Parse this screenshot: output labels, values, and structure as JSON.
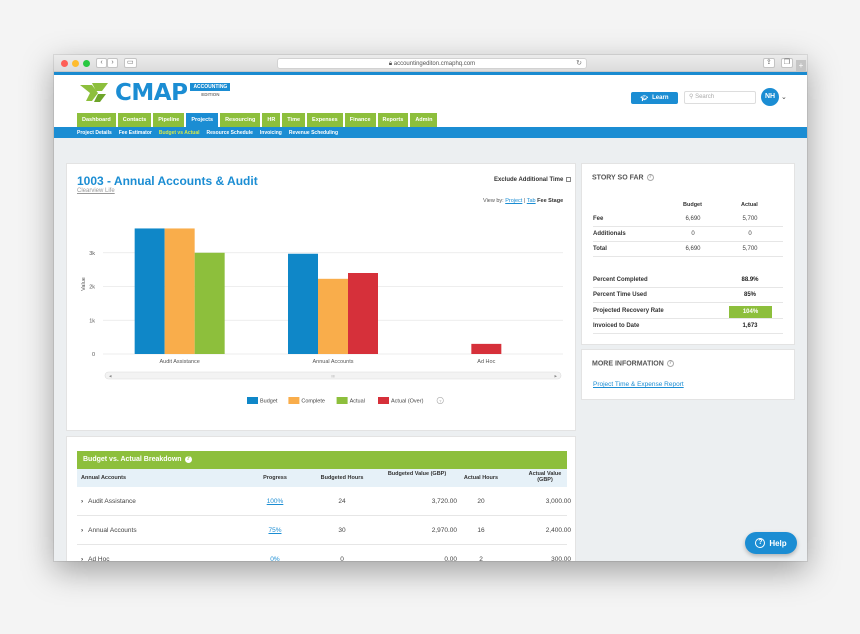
{
  "browser": {
    "url": "accountingediton.cmaphq.com",
    "traffic_lights": [
      "#fe5f57",
      "#febc2e",
      "#28c840"
    ],
    "back_label": "‹",
    "forward_label": "›",
    "reload_icon": "↻",
    "share_icon": "⇪",
    "tabs_icon": "❐",
    "new_tab_label": "+"
  },
  "header": {
    "logo_text": "CMAP",
    "edition_top": "ACCOUNTING",
    "edition_bottom": "EDITION",
    "learn_label": "Learn",
    "search_placeholder": "Search",
    "avatar_initials": "NH",
    "avatar_caret": "⌄"
  },
  "nav": {
    "tabs": [
      {
        "label": "Dashboard",
        "active": false
      },
      {
        "label": "Contacts",
        "active": false
      },
      {
        "label": "Pipeline",
        "active": false
      },
      {
        "label": "Projects",
        "active": true
      },
      {
        "label": "Resourcing",
        "active": false
      },
      {
        "label": "HR",
        "active": false
      },
      {
        "label": "Time",
        "active": false
      },
      {
        "label": "Expenses",
        "active": false
      },
      {
        "label": "Finance",
        "active": false
      },
      {
        "label": "Reports",
        "active": false
      },
      {
        "label": "Admin",
        "active": false
      }
    ],
    "subnav": [
      {
        "label": "Project Details",
        "active": false
      },
      {
        "label": "Fee Estimator",
        "active": false
      },
      {
        "label": "Budget vs Actual",
        "active": true
      },
      {
        "label": "Resource Schedule",
        "active": false
      },
      {
        "label": "Invoicing",
        "active": false
      },
      {
        "label": "Revenue Scheduling",
        "active": false
      }
    ]
  },
  "project": {
    "title": "1003 - Annual Accounts & Audit",
    "client": "Clearview Life",
    "exclude_label": "Exclude Additional Time",
    "viewby_label": "View by:",
    "viewby_project": "Project",
    "viewby_sep": "|",
    "viewby_tab": "Tab",
    "viewby_fee_stage": "Fee Stage"
  },
  "chart_data": {
    "type": "bar",
    "categories": [
      "Audit Assistance",
      "Annual Accounts",
      "Ad Hoc"
    ],
    "ylabel": "Value",
    "yticks": [
      "0",
      "1k",
      "2k",
      "3k"
    ],
    "ylim": [
      0,
      4000
    ],
    "series": [
      {
        "name": "Budget",
        "color": "#0f87c8",
        "values": [
          3720,
          2970,
          0
        ]
      },
      {
        "name": "Complete",
        "color": "#f9ad4b",
        "values": [
          3720,
          2228,
          0
        ]
      },
      {
        "name": "Actual",
        "color": "#8dbf3c",
        "values": [
          3000,
          0,
          0
        ]
      },
      {
        "name": "Actual (Over)",
        "color": "#d6303a",
        "values": [
          0,
          2400,
          300
        ]
      }
    ],
    "legend_position": "bottom",
    "scrollbar_center_label": "III"
  },
  "story": {
    "heading": "STORY SO FAR",
    "col_budget": "Budget",
    "col_actual": "Actual",
    "rows": [
      {
        "label": "Fee",
        "budget": "6,690",
        "actual": "5,700"
      },
      {
        "label": "Additionals",
        "budget": "0",
        "actual": "0"
      },
      {
        "label": "Total",
        "budget": "6,690",
        "actual": "5,700"
      }
    ],
    "metrics": [
      {
        "label": "Percent Completed",
        "value": "88.9%"
      },
      {
        "label": "Percent Time Used",
        "value": "85%"
      },
      {
        "label": "Projected Recovery Rate",
        "value": "104%"
      },
      {
        "label": "Invoiced to Date",
        "value": "1,673"
      }
    ]
  },
  "more_info": {
    "heading": "MORE INFORMATION",
    "link": "Project Time & Expense Report"
  },
  "breakdown": {
    "heading": "Budget vs. Actual Breakdown",
    "columns": [
      "Annual Accounts",
      "Progress",
      "Budgeted Hours",
      "Budgeted Value (GBP)",
      "Actual Hours",
      "Actual Value (GBP)"
    ],
    "rows": [
      {
        "name": "Audit Assistance",
        "progress": "100%",
        "budget_hours": "24",
        "budget_value": "3,720.00",
        "actual_hours": "20",
        "actual_value": "3,000.00"
      },
      {
        "name": "Annual Accounts",
        "progress": "75%",
        "budget_hours": "30",
        "budget_value": "2,970.00",
        "actual_hours": "16",
        "actual_value": "2,400.00"
      },
      {
        "name": "Ad Hoc",
        "progress": "0%",
        "budget_hours": "0",
        "budget_value": "0.00",
        "actual_hours": "2",
        "actual_value": "300.00"
      }
    ]
  },
  "help": {
    "label": "Help",
    "icon": "?"
  }
}
